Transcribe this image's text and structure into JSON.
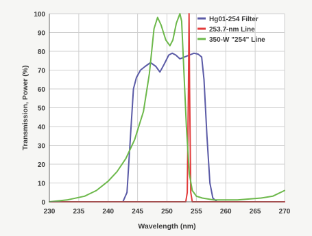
{
  "chart_data": {
    "type": "line",
    "title": "",
    "xlabel": "Wavelength (nm)",
    "ylabel": "Transmission, Power (%)",
    "xlim": [
      230,
      270
    ],
    "ylim": [
      0,
      100
    ],
    "xticks": [
      230,
      235,
      240,
      245,
      250,
      255,
      260,
      265,
      270
    ],
    "yticks": [
      0,
      10,
      20,
      30,
      40,
      50,
      60,
      70,
      80,
      90,
      100
    ],
    "grid": true,
    "legend_position": "top-right",
    "series": [
      {
        "name": "Hg01-254 Filter",
        "color": "#5a5aa6",
        "x": [
          230,
          242.5,
          243.2,
          243.8,
          244.3,
          244.8,
          245.5,
          246.3,
          247.2,
          248.1,
          248.8,
          249.5,
          250.3,
          250.9,
          251.5,
          252.2,
          253.0,
          253.8,
          254.6,
          255.3,
          255.9,
          256.3,
          256.8,
          257.3,
          257.8,
          258.5,
          270
        ],
        "y": [
          0,
          0,
          5,
          35,
          60,
          66,
          70,
          72,
          74,
          72,
          69,
          73,
          78,
          79,
          78,
          76,
          77,
          78,
          79,
          78.5,
          77,
          65,
          35,
          10,
          2,
          0,
          0
        ]
      },
      {
        "name": "253.7-nm Line",
        "color": "#e23b3b",
        "x": [
          230,
          253.2,
          253.45,
          253.65,
          253.75,
          253.85,
          254.05,
          254.3,
          270
        ],
        "y": [
          0,
          0,
          5,
          60,
          100,
          60,
          5,
          0,
          0
        ]
      },
      {
        "name": "350-W \"254\" Line",
        "color": "#6cb84a",
        "x": [
          230,
          233,
          236,
          238,
          240,
          241.5,
          243,
          244.5,
          246,
          247,
          247.8,
          248.4,
          249.0,
          249.8,
          250.5,
          251.0,
          251.6,
          252.2,
          252.5,
          252.8,
          253.3,
          253.8,
          254.3,
          255,
          256,
          258,
          262,
          266,
          268,
          270
        ],
        "y": [
          0,
          1,
          3,
          6,
          11,
          16,
          23,
          33,
          48,
          68,
          92,
          98,
          94,
          86,
          83,
          86,
          95,
          100,
          96,
          75,
          40,
          15,
          6,
          3,
          2,
          1,
          1,
          2,
          3,
          6
        ]
      }
    ]
  }
}
